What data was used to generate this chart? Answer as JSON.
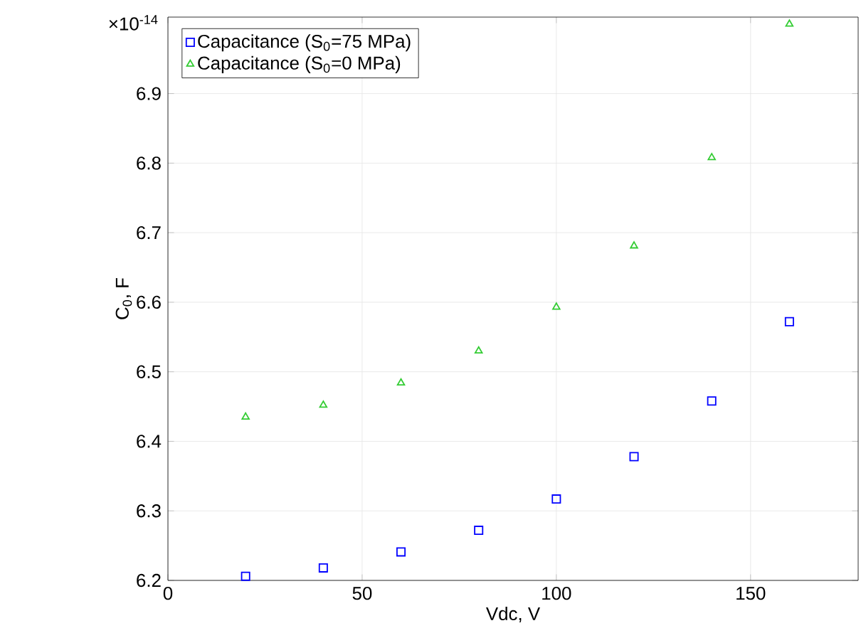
{
  "chart_data": {
    "type": "scatter",
    "xlabel": "Vdc, V",
    "ylabel": "C$_{0}$, F",
    "annotations": [
      "×10$^{-14}$"
    ],
    "x": [
      20,
      40,
      60,
      80,
      100,
      120,
      140,
      160
    ],
    "series": [
      {
        "name": "Capacitance  (S$_{0}$=75 MPa)",
        "color": "#0000ff",
        "marker": "square",
        "values": [
          6.206,
          6.218,
          6.241,
          6.272,
          6.317,
          6.378,
          6.458,
          6.572
        ]
      },
      {
        "name": "Capacitance (S$_{0}$=0 MPa)",
        "color": "#33cc33",
        "marker": "triangle",
        "values": [
          6.435,
          6.452,
          6.484,
          6.53,
          6.593,
          6.681,
          6.808,
          7.0
        ]
      }
    ],
    "xlim": [
      0,
      177.7
    ],
    "ylim": [
      6.2,
      7.01
    ],
    "xticks": [
      0,
      50,
      100,
      150
    ],
    "yticks": [
      6.2,
      6.3,
      6.4,
      6.5,
      6.6,
      6.7,
      6.8,
      6.9
    ],
    "grid": true,
    "legend": "top left"
  }
}
